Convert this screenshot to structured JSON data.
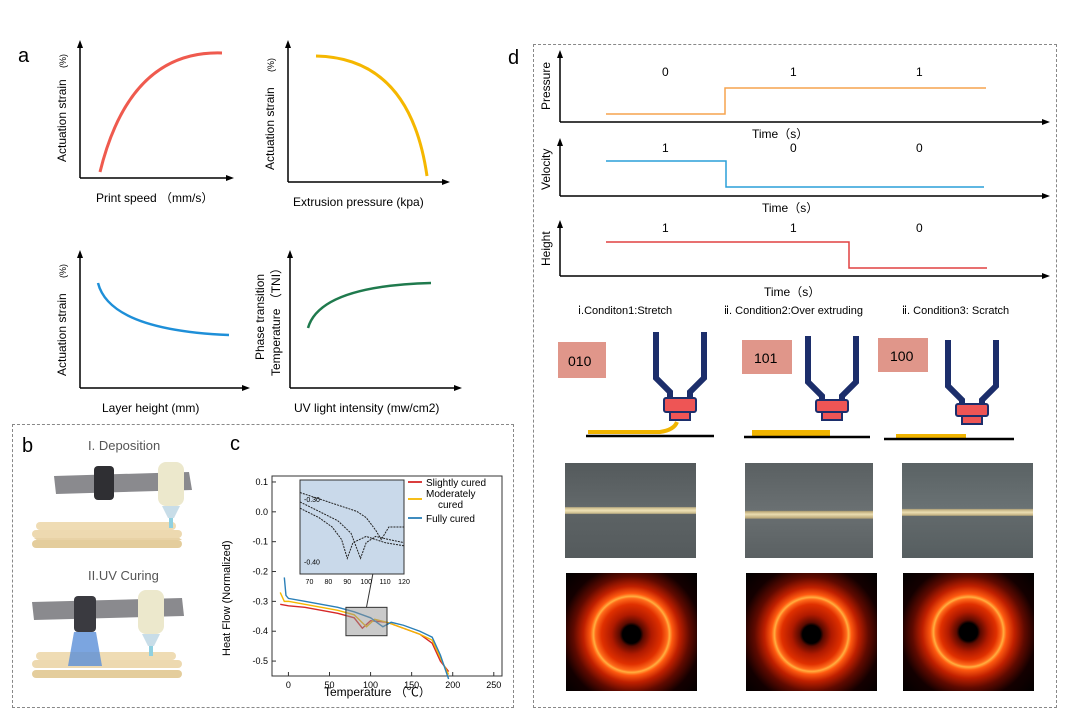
{
  "panel_a": {
    "letter": "a",
    "plots": [
      {
        "xlabel": "Print speed  （mm/s）",
        "ylabel": "Actuation strain",
        "yunit": "(%)",
        "color": "#ef5a4e"
      },
      {
        "xlabel": "Extrusion pressure (kpa)",
        "ylabel": "Actuation strain",
        "yunit": "(%)",
        "color": "#f5b700"
      },
      {
        "xlabel": "Layer height (mm)",
        "ylabel": "Actuation strain",
        "yunit": "(%)",
        "color": "#1e8fd8"
      },
      {
        "xlabel": "UV light intensity  (mw/cm2)",
        "ylabel": "Phase transition",
        "ylabel2": "Temperature （TNI）",
        "color": "#1f7a4d"
      }
    ]
  },
  "panel_b": {
    "letter": "b",
    "step1": "I. Deposition",
    "step2": "II.UV Curing"
  },
  "panel_c": {
    "letter": "c",
    "xlabel": "Temperature  （℃）",
    "ylabel": "Heat Flow (Normalized)",
    "legend": [
      "Slightly cured",
      "Moderately",
      "cured",
      "Fully cured"
    ],
    "colors": {
      "slight": "#d62828",
      "moderate": "#f5b700",
      "fully": "#2a7fb8"
    }
  },
  "chart_data": {
    "type": "line",
    "xlabel": "Temperature  （℃）",
    "ylabel": "Heat Flow (Normalized)",
    "xlim": [
      -20,
      260
    ],
    "ylim": [
      -0.55,
      0.12
    ],
    "xticks": [
      "0",
      "50",
      "100",
      "150",
      "200",
      "250"
    ],
    "yticks": [
      "0.1",
      "0.0",
      "-0.1",
      "-0.2",
      "-0.3",
      "-0.4",
      "-0.5"
    ],
    "series": [
      {
        "name": "Slightly cured",
        "color": "#d62828",
        "x": [
          -10,
          0,
          20,
          40,
          60,
          80,
          90,
          100,
          120,
          140,
          160,
          175,
          185,
          195
        ],
        "y": [
          -0.31,
          -0.315,
          -0.32,
          -0.33,
          -0.34,
          -0.355,
          -0.39,
          -0.365,
          -0.37,
          -0.39,
          -0.41,
          -0.44,
          -0.5,
          -0.535
        ]
      },
      {
        "name": "Moderately cured",
        "color": "#f5b700",
        "x": [
          -10,
          -5,
          0,
          20,
          40,
          60,
          80,
          95,
          105,
          120,
          140,
          160,
          175,
          185,
          195
        ],
        "y": [
          -0.27,
          -0.3,
          -0.3,
          -0.31,
          -0.32,
          -0.33,
          -0.345,
          -0.385,
          -0.36,
          -0.37,
          -0.39,
          -0.41,
          -0.43,
          -0.49,
          -0.545
        ]
      },
      {
        "name": "Fully cured",
        "color": "#2a7fb8",
        "x": [
          -5,
          -3,
          0,
          20,
          40,
          60,
          80,
          100,
          115,
          125,
          140,
          160,
          175,
          185,
          195
        ],
        "y": [
          -0.22,
          -0.28,
          -0.29,
          -0.3,
          -0.31,
          -0.32,
          -0.335,
          -0.355,
          -0.385,
          -0.37,
          -0.38,
          -0.4,
          -0.42,
          -0.48,
          -0.56
        ]
      }
    ],
    "inset": {
      "xlim": [
        65,
        120
      ],
      "ylim": [
        -0.42,
        -0.27
      ],
      "xticks": [
        "70",
        "80",
        "90",
        "100",
        "110",
        "120"
      ],
      "yticks": [
        "-0.30",
        "-0.40"
      ],
      "series": [
        {
          "x": [
            65,
            75,
            82,
            87,
            90,
            93,
            100,
            110,
            120
          ],
          "y": [
            -0.315,
            -0.33,
            -0.345,
            -0.365,
            -0.395,
            -0.37,
            -0.36,
            -0.37,
            -0.375
          ]
        },
        {
          "x": [
            65,
            75,
            85,
            92,
            97,
            100,
            105,
            112,
            120
          ],
          "y": [
            -0.305,
            -0.32,
            -0.335,
            -0.355,
            -0.395,
            -0.37,
            -0.36,
            -0.365,
            -0.37
          ]
        },
        {
          "x": [
            65,
            80,
            95,
            100,
            105,
            108,
            112,
            120
          ],
          "y": [
            -0.29,
            -0.305,
            -0.32,
            -0.33,
            -0.35,
            -0.365,
            -0.345,
            -0.345
          ]
        }
      ]
    }
  },
  "panel_d": {
    "letter": "d",
    "timing": [
      {
        "ylabel": "Pressure",
        "xlabel": "Time（s）",
        "values": [
          "0",
          "1",
          "1"
        ],
        "color": "#f6a44f"
      },
      {
        "ylabel": "Velocity",
        "xlabel": "Time（s）",
        "values": [
          "1",
          "0",
          "0"
        ],
        "color": "#2a9fd8"
      },
      {
        "ylabel": "Height",
        "xlabel": "Time（s）",
        "values": [
          "1",
          "1",
          "0"
        ],
        "color": "#e04040"
      }
    ],
    "conditions": [
      {
        "title": "ⅰ.Conditon1:Stretch",
        "code": "010"
      },
      {
        "title": "ⅱ.  Condition2:Over extruding",
        "code": "101"
      },
      {
        "title": "ⅱ.  Condition3: Scratch",
        "code": "100"
      }
    ],
    "code_box_color": "#e0968a",
    "nozzle_color": "#1c2e6b",
    "tip_color": "#ee5555",
    "filament_color": "#f0b400"
  }
}
